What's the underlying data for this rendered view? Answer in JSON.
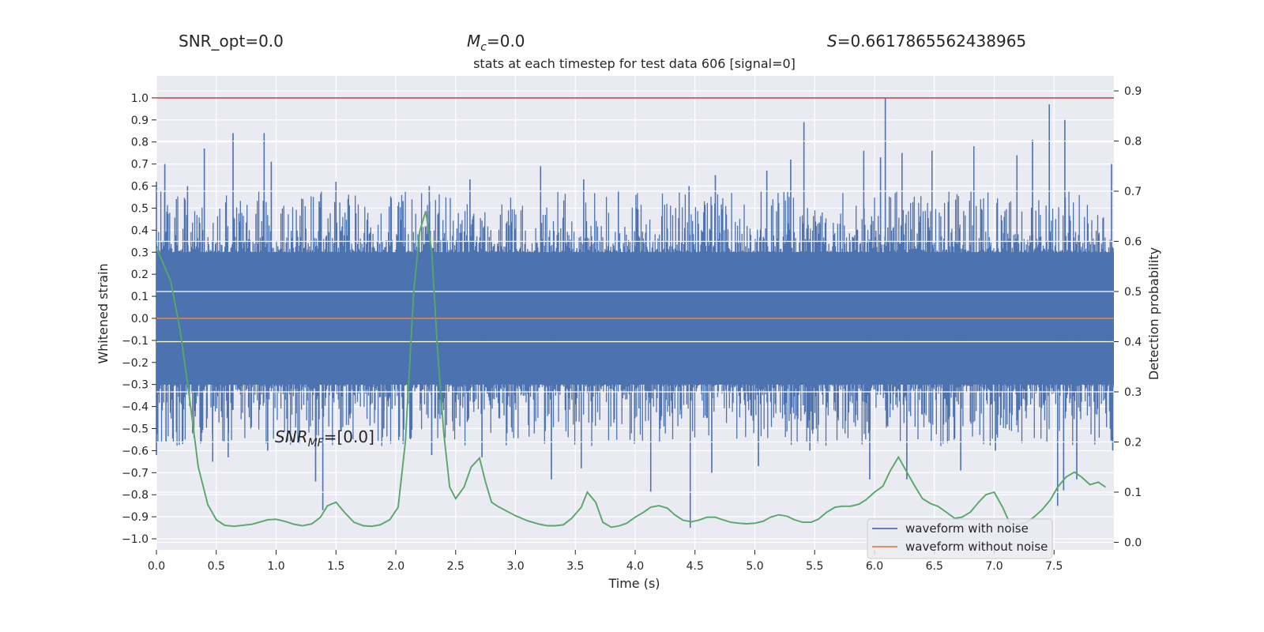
{
  "header": {
    "snr_opt": "SNR_opt=0.0",
    "mc_symbol": "M",
    "mc_sub": "c",
    "mc_value": "=0.0",
    "s_symbol": "S",
    "s_value": "=0.6617865562438965"
  },
  "chart_data": {
    "type": "line",
    "title": "stats at each timestep for test data 606 [signal=0]",
    "xlabel": "Time (s)",
    "ylabel_left": "Whitened strain",
    "ylabel_right": "Detection probability",
    "xlim": [
      0.0,
      8.0
    ],
    "ylim_left": [
      -1.05,
      1.1
    ],
    "ylim_right": [
      -0.015,
      0.93
    ],
    "x_ticks": [
      "0.0",
      "0.5",
      "1.0",
      "1.5",
      "2.0",
      "2.5",
      "3.0",
      "3.5",
      "4.0",
      "4.5",
      "5.0",
      "5.5",
      "6.0",
      "6.5",
      "7.0",
      "7.5"
    ],
    "y_left_ticks": [
      "1.0",
      "0.9",
      "0.8",
      "0.7",
      "0.6",
      "0.5",
      "0.4",
      "0.3",
      "0.2",
      "0.1",
      "0.0",
      "-0.1",
      "-0.2",
      "-0.3",
      "-0.4",
      "-0.5",
      "-0.6",
      "-0.7",
      "-0.8",
      "-0.9",
      "-1.0"
    ],
    "y_right_ticks": [
      "0.9",
      "0.8",
      "0.7",
      "0.6",
      "0.5",
      "0.4",
      "0.3",
      "0.2",
      "0.1",
      "0.0"
    ],
    "grid": true,
    "legend_position": "lower-right",
    "annotation": {
      "prefix": "SNR",
      "sub": "MF",
      "value": "=[0.0]",
      "x": 1.0,
      "y": -0.53
    },
    "threshold_line": {
      "value": 1.0,
      "axis": "left",
      "color": "#c44e52"
    },
    "series": [
      {
        "name": "waveform with noise",
        "color": "#4c72b0",
        "axis": "left",
        "band_lo": -0.35,
        "band_hi": 0.35,
        "core_lo": -0.3,
        "core_hi": 0.3,
        "peaks_pos": [
          [
            0.0,
            0.62
          ],
          [
            0.07,
            0.7
          ],
          [
            0.26,
            0.6
          ],
          [
            0.4,
            0.77
          ],
          [
            0.64,
            0.84
          ],
          [
            0.9,
            0.84
          ],
          [
            0.96,
            0.71
          ],
          [
            1.36,
            0.53
          ],
          [
            1.5,
            0.62
          ],
          [
            2.06,
            0.53
          ],
          [
            2.28,
            0.6
          ],
          [
            2.62,
            0.63
          ],
          [
            3.21,
            0.69
          ],
          [
            3.57,
            0.63
          ],
          [
            3.86,
            0.58
          ],
          [
            4.45,
            0.6
          ],
          [
            4.67,
            0.65
          ],
          [
            5.1,
            0.67
          ],
          [
            5.3,
            0.72
          ],
          [
            5.41,
            0.89
          ],
          [
            5.91,
            0.76
          ],
          [
            6.05,
            0.73
          ],
          [
            6.09,
            1.0
          ],
          [
            6.23,
            0.75
          ],
          [
            6.48,
            0.76
          ],
          [
            6.83,
            0.78
          ],
          [
            7.19,
            0.74
          ],
          [
            7.32,
            0.81
          ],
          [
            7.46,
            0.97
          ],
          [
            7.59,
            0.9
          ],
          [
            7.98,
            0.7
          ]
        ],
        "peaks_neg": [
          [
            0.0,
            -0.62
          ],
          [
            0.08,
            -0.56
          ],
          [
            0.22,
            -0.57
          ],
          [
            0.47,
            -0.65
          ],
          [
            0.6,
            -0.63
          ],
          [
            0.93,
            -0.6
          ],
          [
            1.33,
            -0.74
          ],
          [
            1.39,
            -0.87
          ],
          [
            1.9,
            -0.5
          ],
          [
            2.3,
            -0.62
          ],
          [
            2.72,
            -0.63
          ],
          [
            3.3,
            -0.73
          ],
          [
            3.55,
            -0.68
          ],
          [
            4.13,
            -0.79
          ],
          [
            4.46,
            -0.95
          ],
          [
            4.64,
            -0.7
          ],
          [
            5.03,
            -0.67
          ],
          [
            5.46,
            -0.6
          ],
          [
            5.96,
            -0.73
          ],
          [
            6.27,
            -0.73
          ],
          [
            6.72,
            -0.69
          ],
          [
            7.01,
            -0.6
          ],
          [
            7.53,
            -0.85
          ],
          [
            7.58,
            -0.78
          ],
          [
            7.69,
            -0.73
          ],
          [
            7.99,
            -0.6
          ]
        ]
      },
      {
        "name": "waveform without noise",
        "color": "#dd8452",
        "axis": "left",
        "x": [
          0.0,
          8.0
        ],
        "y": [
          0.0,
          0.0
        ]
      },
      {
        "name": "",
        "color": "#55a868",
        "axis": "right",
        "x": [
          0.0,
          0.05,
          0.12,
          0.2,
          0.27,
          0.35,
          0.43,
          0.5,
          0.57,
          0.65,
          0.8,
          0.93,
          1.0,
          1.07,
          1.15,
          1.22,
          1.3,
          1.37,
          1.43,
          1.5,
          1.57,
          1.65,
          1.73,
          1.8,
          1.87,
          1.95,
          2.02,
          2.08,
          2.15,
          2.2,
          2.25,
          2.3,
          2.35,
          2.4,
          2.45,
          2.5,
          2.57,
          2.63,
          2.7,
          2.75,
          2.8,
          2.85,
          3.0,
          3.1,
          3.2,
          3.27,
          3.33,
          3.4,
          3.47,
          3.55,
          3.6,
          3.67,
          3.73,
          3.8,
          3.87,
          3.93,
          4.0,
          4.07,
          4.13,
          4.2,
          4.27,
          4.33,
          4.4,
          4.47,
          4.53,
          4.6,
          4.67,
          4.73,
          4.8,
          4.87,
          4.93,
          5.0,
          5.07,
          5.13,
          5.2,
          5.27,
          5.33,
          5.4,
          5.47,
          5.53,
          5.6,
          5.67,
          5.73,
          5.8,
          5.87,
          5.93,
          6.0,
          6.07,
          6.13,
          6.2,
          6.27,
          6.33,
          6.4,
          6.47,
          6.53,
          6.6,
          6.67,
          6.73,
          6.8,
          6.87,
          6.93,
          7.0,
          7.07,
          7.13,
          7.2,
          7.27,
          7.33,
          7.4,
          7.47,
          7.53,
          7.6,
          7.67,
          7.73,
          7.8,
          7.87,
          7.93
        ],
        "y": [
          0.585,
          0.56,
          0.52,
          0.42,
          0.3,
          0.15,
          0.075,
          0.045,
          0.034,
          0.032,
          0.036,
          0.045,
          0.046,
          0.042,
          0.036,
          0.033,
          0.037,
          0.05,
          0.073,
          0.08,
          0.06,
          0.04,
          0.033,
          0.032,
          0.035,
          0.045,
          0.07,
          0.2,
          0.5,
          0.62,
          0.66,
          0.58,
          0.38,
          0.22,
          0.11,
          0.087,
          0.11,
          0.15,
          0.168,
          0.12,
          0.08,
          0.072,
          0.053,
          0.043,
          0.036,
          0.033,
          0.033,
          0.035,
          0.048,
          0.07,
          0.1,
          0.08,
          0.04,
          0.03,
          0.033,
          0.038,
          0.05,
          0.06,
          0.07,
          0.073,
          0.068,
          0.055,
          0.044,
          0.041,
          0.044,
          0.05,
          0.05,
          0.045,
          0.04,
          0.038,
          0.037,
          0.038,
          0.042,
          0.05,
          0.055,
          0.052,
          0.045,
          0.04,
          0.04,
          0.046,
          0.06,
          0.07,
          0.072,
          0.072,
          0.076,
          0.085,
          0.1,
          0.112,
          0.142,
          0.17,
          0.14,
          0.115,
          0.087,
          0.077,
          0.072,
          0.06,
          0.048,
          0.05,
          0.06,
          0.08,
          0.095,
          0.1,
          0.07,
          0.038,
          0.035,
          0.04,
          0.05,
          0.065,
          0.085,
          0.11,
          0.13,
          0.14,
          0.13,
          0.115,
          0.12,
          0.11
        ]
      }
    ]
  }
}
